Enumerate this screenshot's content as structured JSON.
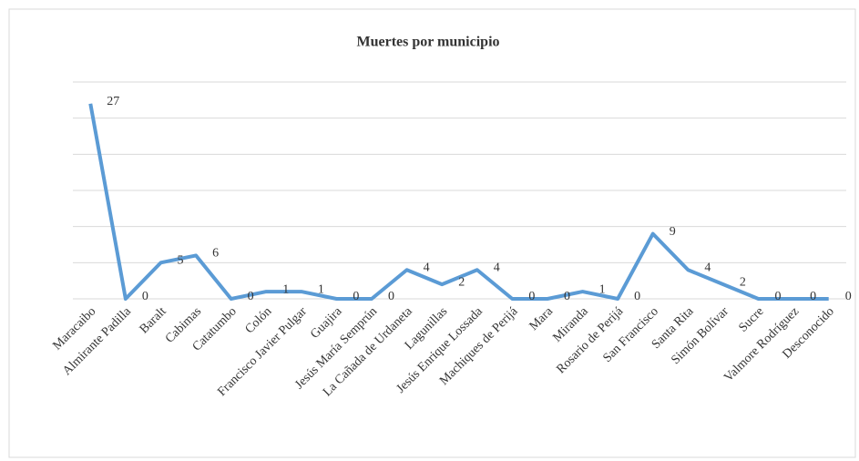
{
  "chart_data": {
    "type": "line",
    "title": "Muertes por municipio",
    "categories": [
      "Maracaibo",
      "Almirante Padilla",
      "Baralt",
      "Cabimas",
      "Catatumbo",
      "Colón",
      "Francisco Javier Pulgar",
      "Guajira",
      "Jesús María Semprún",
      "La Cañada de Urdaneta",
      "Lagunillas",
      "Jesús Enrique Lossada",
      "Machiques de Perijá",
      "Mara",
      "Miranda",
      "Rosario de Perijá",
      "San Francisco",
      "Santa Rita",
      "Simón Bolívar",
      "Sucre",
      "Valmore Rodríguez",
      "Desconocido"
    ],
    "values": [
      27,
      0,
      5,
      6,
      0,
      1,
      1,
      0,
      0,
      4,
      2,
      4,
      0,
      0,
      1,
      0,
      9,
      4,
      2,
      0,
      0,
      0
    ],
    "color": "#5b9bd5",
    "ylim": [
      0,
      30
    ],
    "yticks": [
      0,
      5,
      10,
      15,
      20,
      25,
      30
    ],
    "grid": true
  }
}
